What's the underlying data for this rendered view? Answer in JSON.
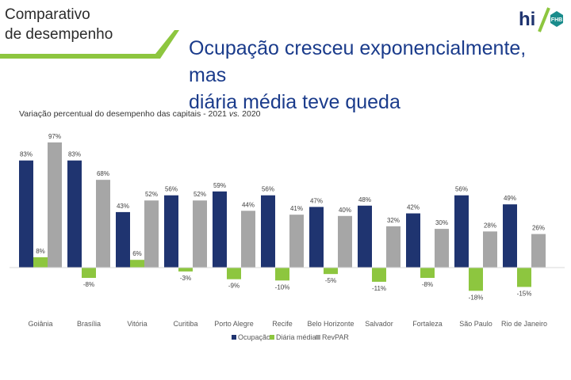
{
  "header": {
    "section_line1": "Comparativo",
    "section_line2": "de desempenho",
    "headline_line1": "Ocupação cresceu exponencialmente, mas",
    "headline_line2": "diária média teve queda",
    "logo_text": "hi",
    "logo_badge": "FHB"
  },
  "colors": {
    "accent_green": "#8dc63f",
    "headline_blue": "#1a3b8b",
    "ocupacao": "#1f3470",
    "diaria": "#8dc63f",
    "revpar": "#a6a6a6"
  },
  "chart_data": {
    "type": "bar",
    "title": "",
    "subtitle_prefix": "Variação percentual do desempenho das capitais - 2021 ",
    "subtitle_vs": "vs.",
    "subtitle_suffix": " 2020",
    "categories": [
      "Goiânia",
      "Brasília",
      "Vitória",
      "Curitiba",
      "Porto Alegre",
      "Recife",
      "Belo Horizonte",
      "Salvador",
      "Fortaleza",
      "São Paulo",
      "Rio de Janeiro"
    ],
    "series": [
      {
        "name": "Ocupação",
        "values": [
          83,
          83,
          43,
          56,
          59,
          56,
          47,
          48,
          42,
          56,
          49
        ]
      },
      {
        "name": "Diária média",
        "values": [
          8,
          -8,
          6,
          -3,
          -9,
          -10,
          -5,
          -11,
          -8,
          -18,
          -15
        ]
      },
      {
        "name": "RevPAR",
        "values": [
          97,
          68,
          52,
          52,
          44,
          41,
          40,
          32,
          30,
          28,
          26
        ]
      }
    ],
    "value_suffix": "%",
    "ylim": [
      -25,
      100
    ],
    "xlabel": "",
    "ylabel": "",
    "grid": false,
    "legend_position": "bottom-center"
  }
}
